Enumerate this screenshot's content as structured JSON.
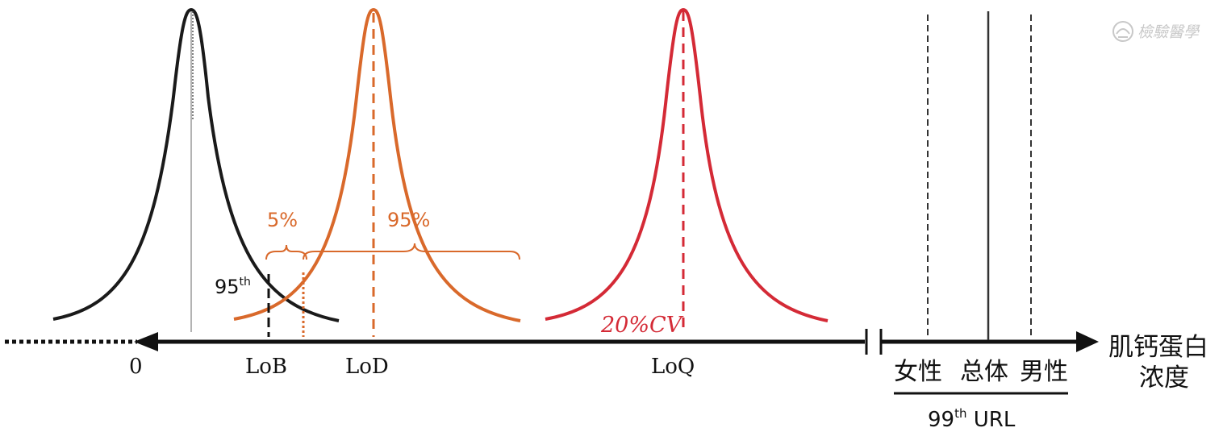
{
  "colors": {
    "blank_curve": "#1a1a1a",
    "lod_curve": "#d9692b",
    "loq_curve": "#d42a36",
    "axis": "#111111",
    "watermark": "#c8c8c8"
  },
  "labels": {
    "zero": "0",
    "lob": "LoB",
    "lod": "LoD",
    "loq": "LoQ",
    "pct_5": "5%",
    "pct_95": "95%",
    "p95_base": "95",
    "p95_sup": "th",
    "cv_20": "20%CV",
    "female": "女性",
    "overall": "总体",
    "male": "男性",
    "url_base": "99",
    "url_sup": "th",
    "url_suffix": " URL",
    "axis_line1": "肌钙蛋白",
    "axis_line2": "浓度"
  },
  "watermark": {
    "icon": "logo-seal-icon",
    "text": "檢驗醫學"
  }
}
